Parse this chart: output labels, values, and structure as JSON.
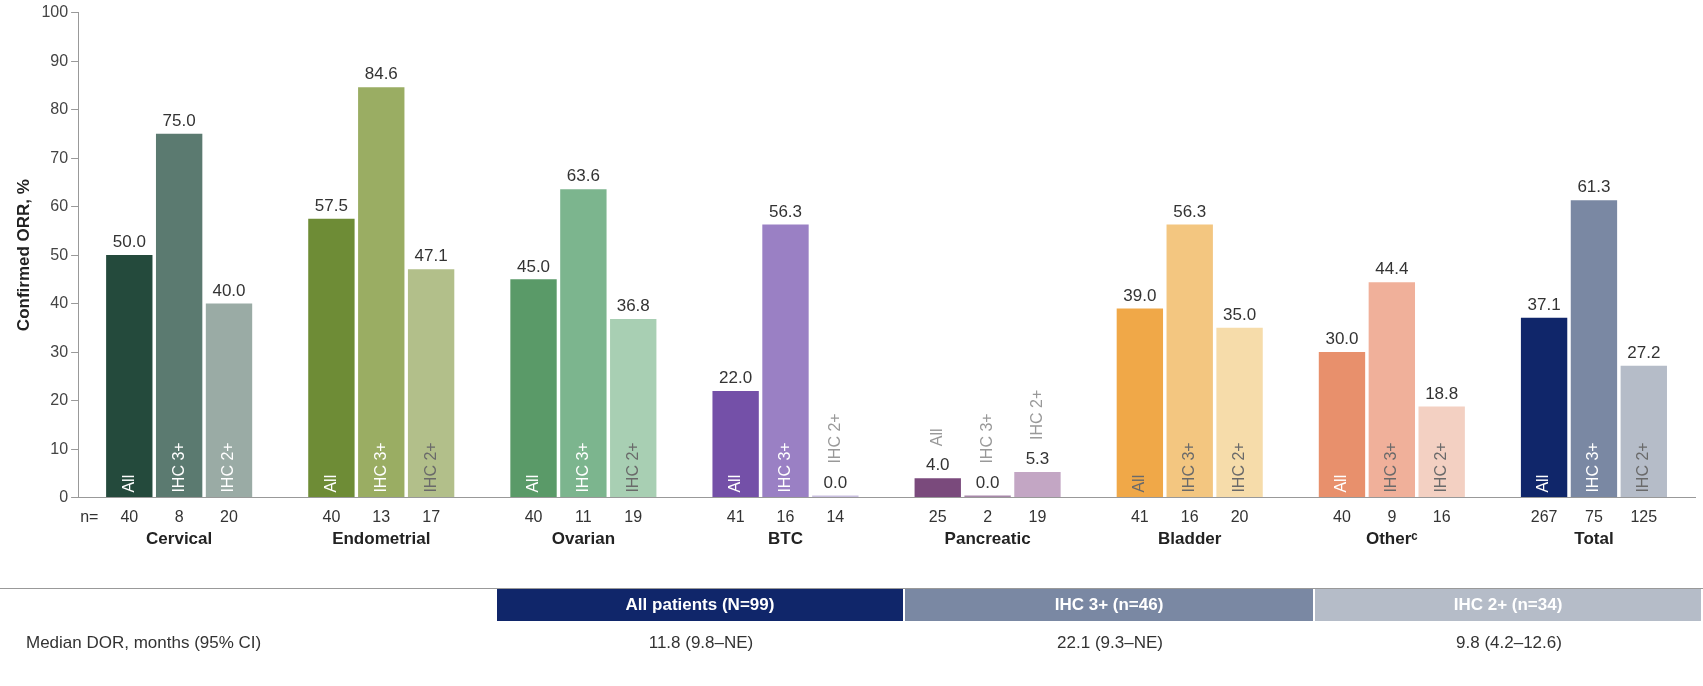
{
  "chart_data": {
    "type": "bar",
    "ylabel": "Confirmed ORR, %",
    "categories": [
      "Cervical",
      "Endometrial",
      "Ovarian",
      "BTC",
      "Pancreatic",
      "Bladder",
      "Otherᶜ",
      "Total"
    ],
    "series": [
      {
        "name": "All",
        "values": [
          50.0,
          57.5,
          45.0,
          22.0,
          4.0,
          39.0,
          30.0,
          37.1
        ],
        "value_labels": [
          "50.0",
          "57.5",
          "45.0",
          "22.0",
          "4.0",
          "39.0",
          "30.0",
          "37.1"
        ],
        "colors": [
          "#244a3c",
          "#6e8c36",
          "#5a9a68",
          "#7450a8",
          "#7a4a7c",
          "#f0a848",
          "#e8906c",
          "#10266a"
        ]
      },
      {
        "name": "IHC 3+",
        "values": [
          75.0,
          84.6,
          63.6,
          56.3,
          0.0,
          56.3,
          44.4,
          61.3
        ],
        "value_labels": [
          "75.0",
          "84.6",
          "63.6",
          "56.3",
          "0.0",
          "56.3",
          "44.4",
          "61.3"
        ],
        "colors": [
          "#5b7a70",
          "#9aad63",
          "#7cb58e",
          "#9a80c4",
          "#a888aa",
          "#f3c680",
          "#f0b09a",
          "#7a88a3"
        ]
      },
      {
        "name": "IHC 2+",
        "values": [
          40.0,
          47.1,
          36.8,
          0.0,
          5.3,
          35.0,
          18.8,
          27.2
        ],
        "value_labels": [
          "40.0",
          "47.1",
          "36.8",
          "0.0",
          "5.3",
          "35.0",
          "18.8",
          "27.2"
        ],
        "colors": [
          "#9aaba5",
          "#b2bf8a",
          "#a8cfb3",
          "#c9bfe0",
          "#c3a6c4",
          "#f6dcaa",
          "#f3d0c2",
          "#b5bcc8"
        ]
      }
    ],
    "ylim": [
      0,
      100
    ],
    "yticks": [
      0,
      10,
      20,
      30,
      40,
      50,
      60,
      70,
      80,
      90,
      100
    ],
    "grid": false,
    "legend": false,
    "annotations": [
      "n=",
      "40",
      "8",
      "20",
      "40",
      "13",
      "17",
      "40",
      "11",
      "19",
      "41",
      "16",
      "14",
      "25",
      "2",
      "19",
      "41",
      "16",
      "20",
      "40",
      "9",
      "16",
      "267",
      "75",
      "125",
      "All patients (N=99)",
      "IHC 3+ (n=46)",
      "IHC 2+ (n=34)",
      "Median DOR, months (95% CI)",
      "11.8 (9.8–NE)",
      "22.1 (9.3–NE)",
      "9.8 (4.2–12.6)"
    ]
  }
}
